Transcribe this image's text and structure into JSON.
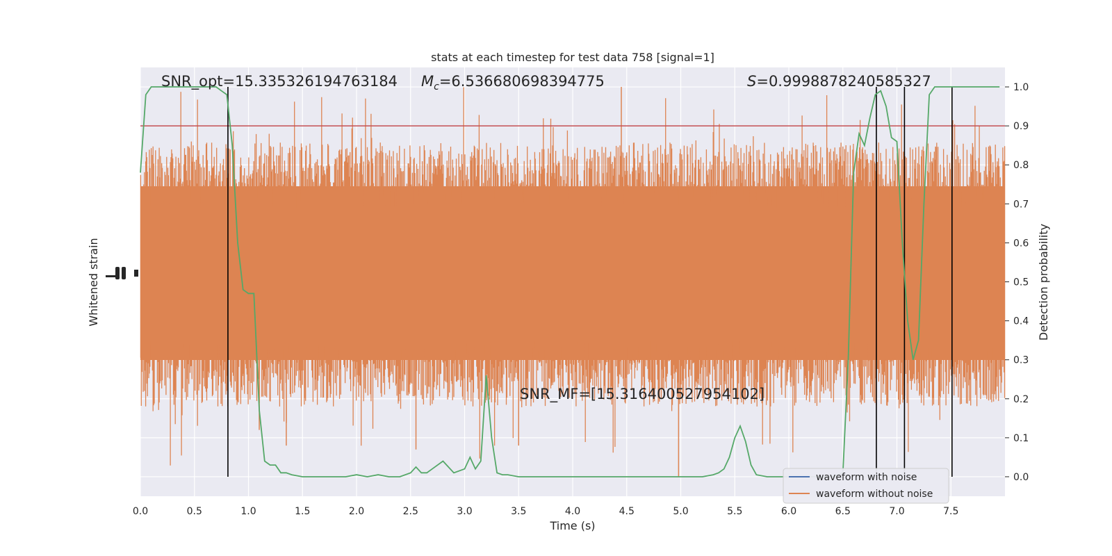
{
  "chart_data": {
    "type": "line",
    "title": "stats at each timestep for test data 758 [signal=1]",
    "xlabel": "Time (s)",
    "ylabel_left": "Whitened strain",
    "ylabel_right": "Detection probability",
    "xlim": [
      0.0,
      8.0
    ],
    "ylim_right": [
      -0.05,
      1.05
    ],
    "x_ticks": [
      "0.0",
      "0.5",
      "1.0",
      "1.5",
      "2.0",
      "2.5",
      "3.0",
      "3.5",
      "4.0",
      "4.5",
      "5.0",
      "5.5",
      "6.0",
      "6.5",
      "7.0",
      "7.5"
    ],
    "y_ticks_right": [
      "0.0",
      "0.1",
      "0.2",
      "0.3",
      "0.4",
      "0.5",
      "0.6",
      "0.7",
      "0.8",
      "0.9",
      "1.0"
    ],
    "annotations": {
      "snr_opt": "SNR_opt=15.335326194763184",
      "mc_symbol": "M",
      "mc_sub": "c",
      "mc_value": "=6.536680698394775",
      "s_symbol": "S",
      "s_value": "=0.9998878240585327",
      "snr_mf": "SNR_MF=[15.316400527954102]"
    },
    "threshold": 0.9,
    "vertical_lines_x": [
      0.81,
      6.81,
      7.07,
      7.51
    ],
    "series": [
      {
        "name": "waveform with noise",
        "color": "#4c72b0"
      },
      {
        "name": "waveform without noise",
        "color": "#dd8452"
      }
    ],
    "probability_curve": {
      "color": "#55a868",
      "x": [
        0.0,
        0.05,
        0.1,
        0.2,
        0.3,
        0.4,
        0.5,
        0.6,
        0.7,
        0.75,
        0.8,
        0.85,
        0.9,
        0.95,
        1.0,
        1.05,
        1.1,
        1.15,
        1.2,
        1.25,
        1.3,
        1.35,
        1.4,
        1.5,
        1.6,
        1.7,
        1.8,
        1.9,
        2.0,
        2.1,
        2.2,
        2.3,
        2.4,
        2.5,
        2.55,
        2.6,
        2.65,
        2.7,
        2.8,
        2.9,
        3.0,
        3.05,
        3.1,
        3.15,
        3.2,
        3.25,
        3.3,
        3.35,
        3.4,
        3.5,
        3.6,
        3.8,
        4.0,
        4.2,
        4.4,
        4.6,
        4.8,
        5.0,
        5.2,
        5.3,
        5.35,
        5.4,
        5.45,
        5.5,
        5.55,
        5.6,
        5.65,
        5.7,
        5.8,
        5.9,
        6.0,
        6.2,
        6.4,
        6.5,
        6.55,
        6.6,
        6.65,
        6.7,
        6.75,
        6.8,
        6.85,
        6.9,
        6.95,
        7.0,
        7.05,
        7.1,
        7.15,
        7.2,
        7.25,
        7.3,
        7.35,
        7.4,
        7.45,
        7.5,
        7.55,
        7.6,
        7.7,
        7.8,
        7.9,
        7.95
      ],
      "y": [
        0.78,
        0.98,
        1.0,
        1.0,
        1.0,
        1.0,
        1.0,
        1.0,
        1.0,
        0.99,
        0.98,
        0.85,
        0.6,
        0.48,
        0.47,
        0.47,
        0.17,
        0.04,
        0.03,
        0.03,
        0.01,
        0.01,
        0.005,
        0.0,
        0.0,
        0.0,
        0.0,
        0.0,
        0.005,
        0.0,
        0.005,
        0.0,
        0.0,
        0.01,
        0.025,
        0.01,
        0.01,
        0.02,
        0.04,
        0.01,
        0.02,
        0.05,
        0.02,
        0.04,
        0.26,
        0.1,
        0.01,
        0.005,
        0.005,
        0.0,
        0.0,
        0.0,
        0.0,
        0.0,
        0.0,
        0.0,
        0.0,
        0.0,
        0.0,
        0.005,
        0.01,
        0.02,
        0.05,
        0.1,
        0.13,
        0.09,
        0.03,
        0.005,
        0.0,
        0.0,
        0.0,
        0.0,
        0.0,
        0.01,
        0.3,
        0.78,
        0.88,
        0.85,
        0.92,
        0.98,
        0.99,
        0.95,
        0.87,
        0.86,
        0.6,
        0.4,
        0.3,
        0.35,
        0.7,
        0.98,
        1.0,
        1.0,
        1.0,
        1.0,
        1.0,
        1.0,
        1.0,
        1.0,
        1.0,
        1.0
      ]
    },
    "legend_position": "lower right",
    "grid": true
  }
}
